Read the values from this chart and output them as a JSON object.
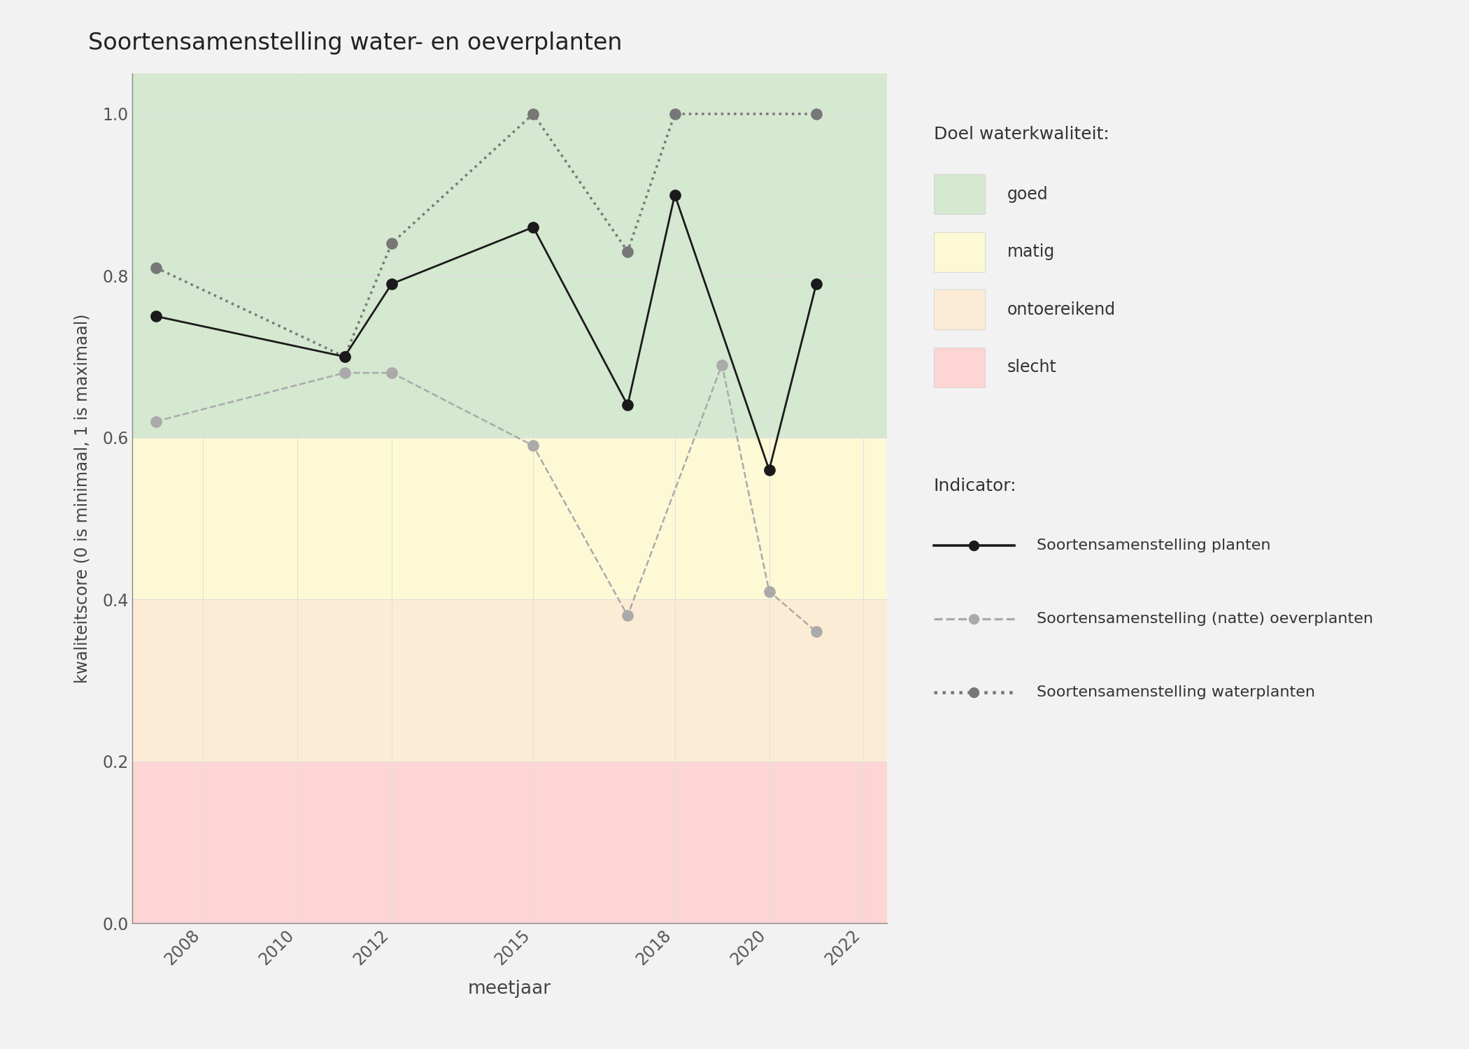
{
  "title": "Soortensamenstelling water- en oeverplanten",
  "xlabel": "meetjaar",
  "ylabel": "kwaliteitscore (0 is minimaal, 1 is maximaal)",
  "xlim": [
    2006.5,
    2022.5
  ],
  "ylim": [
    0.0,
    1.05
  ],
  "yticks": [
    0.0,
    0.2,
    0.4,
    0.6,
    0.8,
    1.0
  ],
  "xticks": [
    2008,
    2010,
    2012,
    2015,
    2018,
    2020,
    2022
  ],
  "background_color": "#f2f2f2",
  "plot_bg": "#ffffff",
  "bands": [
    {
      "ymin": 0.6,
      "ymax": 1.05,
      "color": "#d5e8d0",
      "label": "goed"
    },
    {
      "ymin": 0.4,
      "ymax": 0.6,
      "color": "#fdf9d5",
      "label": "matig"
    },
    {
      "ymin": 0.2,
      "ymax": 0.4,
      "color": "#fdecd5",
      "label": "ontoereikend"
    },
    {
      "ymin": 0.0,
      "ymax": 0.2,
      "color": "#fdd5d5",
      "label": "slecht"
    }
  ],
  "series": [
    {
      "name": "Soortensamenstelling planten",
      "x": [
        2007,
        2011,
        2012,
        2015,
        2017,
        2018,
        2020,
        2021
      ],
      "y": [
        0.75,
        0.7,
        0.79,
        0.86,
        0.64,
        0.9,
        0.56,
        0.79
      ],
      "color": "#1a1a1a",
      "linestyle": "solid",
      "linewidth": 2.0,
      "markersize": 11,
      "marker": "o",
      "zorder": 5
    },
    {
      "name": "Soortensamenstelling (natte) oeverplanten",
      "x": [
        2007,
        2011,
        2012,
        2015,
        2017,
        2019,
        2020,
        2021
      ],
      "y": [
        0.62,
        0.68,
        0.68,
        0.59,
        0.38,
        0.69,
        0.41,
        0.36
      ],
      "color": "#aaaaaa",
      "linestyle": "dashed",
      "linewidth": 1.8,
      "markersize": 11,
      "marker": "o",
      "zorder": 4
    },
    {
      "name": "Soortensamenstelling waterplanten",
      "x": [
        2007,
        2011,
        2012,
        2015,
        2017,
        2018,
        2021
      ],
      "y": [
        0.81,
        0.7,
        0.84,
        1.0,
        0.83,
        1.0,
        1.0
      ],
      "color": "#777777",
      "linestyle": "dotted",
      "linewidth": 2.5,
      "markersize": 11,
      "marker": "o",
      "zorder": 3
    }
  ],
  "legend_title_doel": "Doel waterkwaliteit:",
  "legend_title_indicator": "Indicator:",
  "band_colors_legend": [
    "#d5e8d0",
    "#fdf9d5",
    "#fdecd5",
    "#fdd5d5"
  ],
  "band_labels_legend": [
    "goed",
    "matig",
    "ontoereikend",
    "slecht"
  ]
}
